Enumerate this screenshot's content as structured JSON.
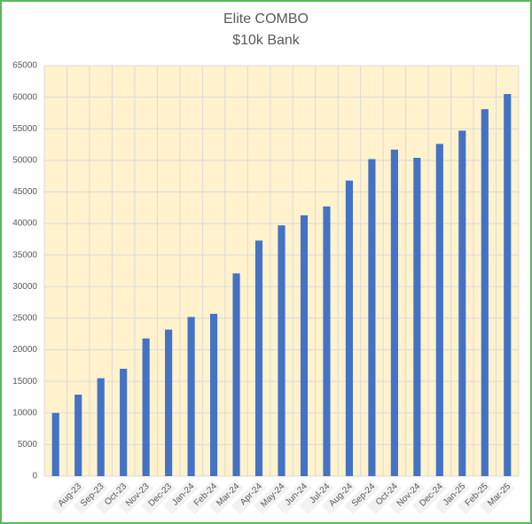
{
  "chart_data": {
    "type": "bar",
    "title": "Elite COMBO",
    "subtitle": "$10k Bank",
    "categories": [
      null,
      "Aug-23",
      "Sep-23",
      "Oct-23",
      "Nov-23",
      "Dec-23",
      "Jan-24",
      "Feb-24",
      "Mar-24",
      "Apr-24",
      "May-24",
      "Jun-24",
      "Jul-24",
      "Aug-24",
      "Sep-24",
      "Oct-24",
      "Nov-24",
      "Dec-24",
      "Jan-25",
      "Feb-25",
      "Mar-25"
    ],
    "values": [
      10000,
      12900,
      15500,
      17000,
      21800,
      23200,
      25200,
      25700,
      32100,
      37300,
      39700,
      41300,
      42700,
      46800,
      50200,
      51700,
      50400,
      52600,
      54700,
      58100,
      60500
    ],
    "color": "#4472c4",
    "plot_background": "#fff2cc",
    "ylim": [
      0,
      65000
    ],
    "yticks": [
      0,
      5000,
      10000,
      15000,
      20000,
      25000,
      30000,
      35000,
      40000,
      45000,
      50000,
      55000,
      60000,
      65000
    ],
    "grid": true
  }
}
